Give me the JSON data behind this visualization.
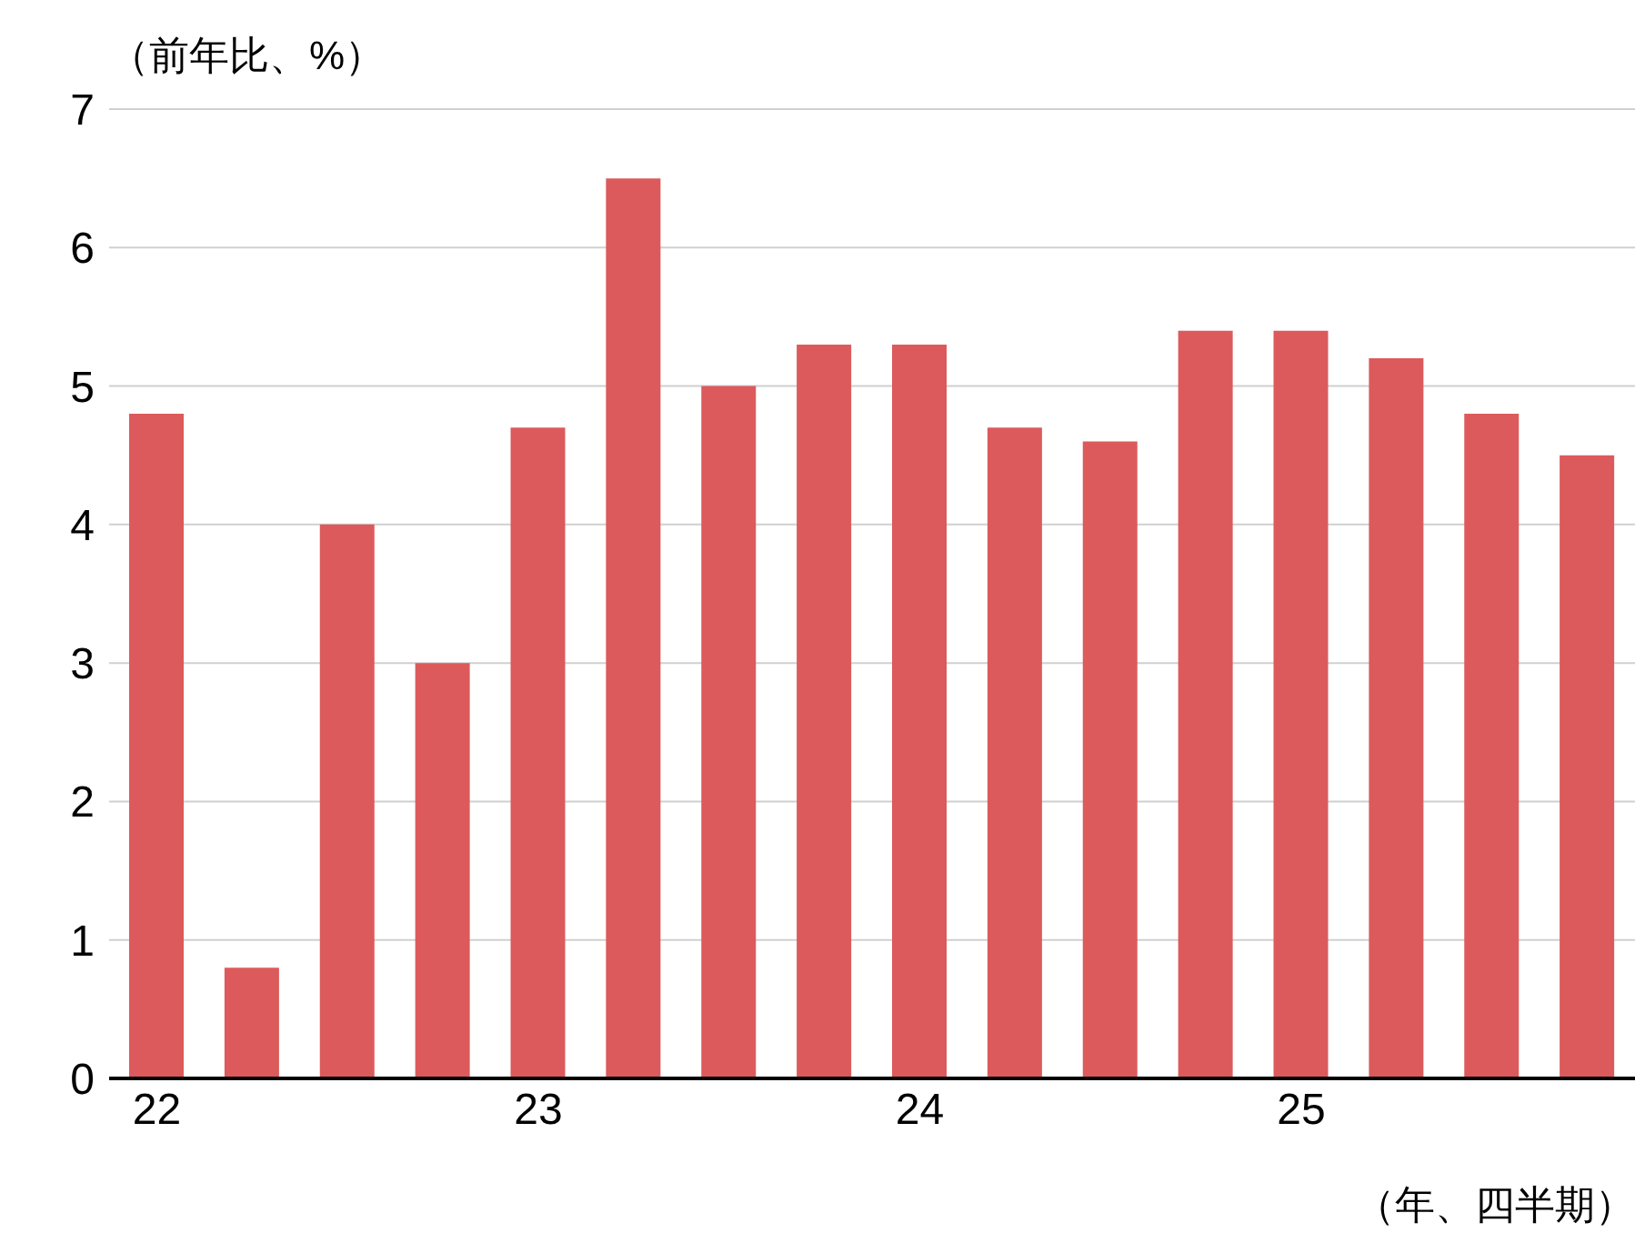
{
  "chart_data": {
    "type": "bar",
    "title": "（前年比、%）",
    "xlabel": "（年、四半期）",
    "categories": [
      "22",
      null,
      null,
      null,
      "23",
      null,
      null,
      null,
      "24",
      null,
      null,
      null,
      "25",
      null,
      null,
      null
    ],
    "values": [
      4.8,
      0.8,
      4.0,
      3.0,
      4.7,
      6.5,
      5.0,
      5.3,
      5.3,
      4.7,
      4.6,
      5.4,
      5.4,
      5.2,
      4.8,
      4.5
    ],
    "color": "#dc5a5c",
    "ylim": [
      0,
      7
    ],
    "yticks": [
      0,
      1,
      2,
      3,
      4,
      5,
      6,
      7
    ],
    "grid": "y"
  }
}
